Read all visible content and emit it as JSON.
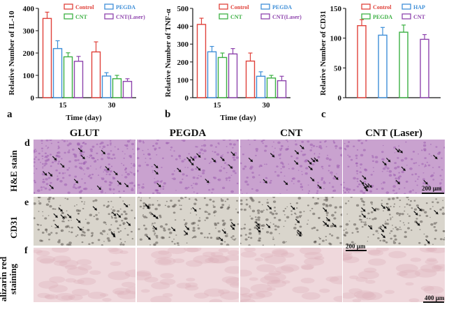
{
  "charts": {
    "a": {
      "letter": "a",
      "ylabel": "Relative Number of IL-10",
      "xlabel": "Time (day)"
    },
    "b": {
      "letter": "b",
      "ylabel": "Relative Number of TNF-α",
      "xlabel": "Time (day)"
    },
    "c": {
      "letter": "c",
      "ylabel": "Relative Number of CD31",
      "xlabel": ""
    }
  },
  "chart_data": [
    {
      "type": "bar",
      "ylabel": "Relative Number of IL-10",
      "xlabel": "Time (day)",
      "categories": [
        "15",
        "30"
      ],
      "ylim": [
        0,
        400
      ],
      "yticks": [
        0,
        100,
        200,
        300,
        400
      ],
      "legend_position": "top-right",
      "series": [
        {
          "name": "Control",
          "color": "#e0413a",
          "values": [
            355,
            205
          ],
          "errors": [
            28,
            45
          ]
        },
        {
          "name": "PEGDA",
          "color": "#3f8fd8",
          "values": [
            220,
            97
          ],
          "errors": [
            35,
            15
          ]
        },
        {
          "name": "CNT",
          "color": "#3cb043",
          "values": [
            183,
            85
          ],
          "errors": [
            18,
            15
          ]
        },
        {
          "name": "CNT(Laser)",
          "color": "#8e44ad",
          "values": [
            163,
            73
          ],
          "errors": [
            22,
            12
          ]
        }
      ]
    },
    {
      "type": "bar",
      "ylabel": "Relative Number of TNF-α",
      "xlabel": "Time (day)",
      "categories": [
        "15",
        "30"
      ],
      "ylim": [
        0,
        500
      ],
      "yticks": [
        0,
        100,
        200,
        300,
        400,
        500
      ],
      "legend_position": "top-right",
      "series": [
        {
          "name": "Control",
          "color": "#e0413a",
          "values": [
            410,
            205
          ],
          "errors": [
            35,
            45
          ]
        },
        {
          "name": "PEGDA",
          "color": "#3f8fd8",
          "values": [
            257,
            120
          ],
          "errors": [
            30,
            25
          ]
        },
        {
          "name": "CNT",
          "color": "#3cb043",
          "values": [
            225,
            110
          ],
          "errors": [
            25,
            15
          ]
        },
        {
          "name": "CNT(Laser)",
          "color": "#8e44ad",
          "values": [
            245,
            95
          ],
          "errors": [
            30,
            25
          ]
        }
      ]
    },
    {
      "type": "bar",
      "ylabel": "Relative Number of CD31",
      "xlabel": "",
      "categories": [
        ""
      ],
      "ylim": [
        0,
        150
      ],
      "yticks": [
        0,
        50,
        100,
        150
      ],
      "legend_position": "top-right",
      "series": [
        {
          "name": "Control",
          "color": "#e0413a",
          "values": [
            121
          ],
          "errors": [
            10
          ]
        },
        {
          "name": "HAP",
          "color": "#3f8fd8",
          "values": [
            105
          ],
          "errors": [
            13
          ]
        },
        {
          "name": "PEGDA",
          "color": "#3cb043",
          "values": [
            110
          ],
          "errors": [
            12
          ]
        },
        {
          "name": "CNT",
          "color": "#8e44ad",
          "values": [
            98
          ],
          "errors": [
            8
          ]
        }
      ]
    }
  ],
  "histology": {
    "column_headers": [
      "GLUT",
      "PEGDA",
      "CNT",
      "CNT (Laser)"
    ],
    "rows": [
      {
        "letter": "d",
        "label": "H&E stain",
        "scale": "200 μm",
        "bg": "#c9a2cf",
        "fg": "#9c5fb0"
      },
      {
        "letter": "e",
        "label": "CD31",
        "scale": "200 μm",
        "bg": "#d9d5cc",
        "fg": "#5b5550"
      },
      {
        "letter": "f",
        "label": "alizarin red staining",
        "scale": "400 μm",
        "bg": "#efd8dc",
        "fg": "#dcb3bb"
      }
    ]
  }
}
